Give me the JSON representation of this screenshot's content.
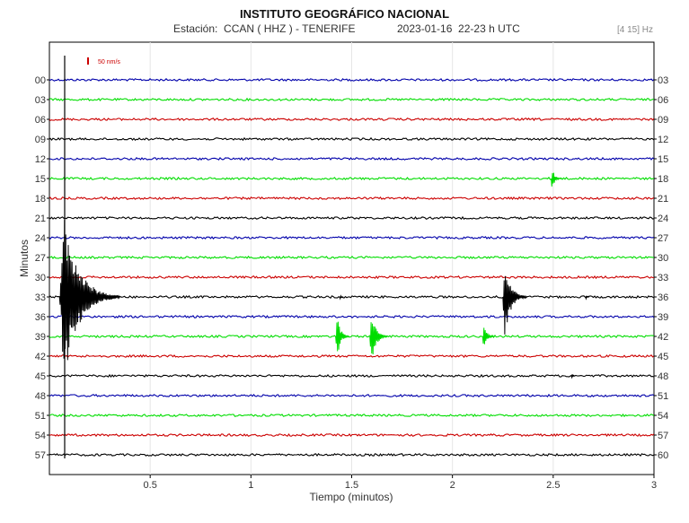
{
  "header": {
    "title": "INSTITUTO GEOGRÁFICO NACIONAL",
    "station": "Estación:  CCAN ( HHZ ) - TENERIFE",
    "date": "2023-01-16  22-23 h UTC",
    "band": "[4 15] Hz"
  },
  "chart_data": {
    "type": "line",
    "xlabel": "Tiempo (minutos)",
    "ylabel": "Minutos",
    "xlim": [
      0,
      3
    ],
    "x_ticks": [
      "0.5",
      "1",
      "1.5",
      "2",
      "2.5",
      "3"
    ],
    "scale_label": "50 nm/s",
    "grid": true,
    "rows": [
      {
        "left": "00",
        "right": "03",
        "color": "#0000aa"
      },
      {
        "left": "03",
        "right": "06",
        "color": "#00dd00"
      },
      {
        "left": "06",
        "right": "09",
        "color": "#cc0000"
      },
      {
        "left": "09",
        "right": "12",
        "color": "#000000"
      },
      {
        "left": "12",
        "right": "15",
        "color": "#0000aa"
      },
      {
        "left": "15",
        "right": "18",
        "color": "#00dd00"
      },
      {
        "left": "18",
        "right": "21",
        "color": "#cc0000"
      },
      {
        "left": "21",
        "right": "24",
        "color": "#000000"
      },
      {
        "left": "24",
        "right": "27",
        "color": "#0000aa"
      },
      {
        "left": "27",
        "right": "30",
        "color": "#00dd00"
      },
      {
        "left": "30",
        "right": "33",
        "color": "#cc0000"
      },
      {
        "left": "33",
        "right": "36",
        "color": "#000000"
      },
      {
        "left": "36",
        "right": "39",
        "color": "#0000aa"
      },
      {
        "left": "39",
        "right": "42",
        "color": "#00dd00"
      },
      {
        "left": "42",
        "right": "45",
        "color": "#cc0000"
      },
      {
        "left": "45",
        "right": "48",
        "color": "#000000"
      },
      {
        "left": "48",
        "right": "51",
        "color": "#0000aa"
      },
      {
        "left": "51",
        "right": "54",
        "color": "#00dd00"
      },
      {
        "left": "54",
        "right": "57",
        "color": "#cc0000"
      },
      {
        "left": "57",
        "right": "60",
        "color": "#000000"
      }
    ],
    "events": [
      {
        "row": 5,
        "t": 2.49,
        "amp": 14,
        "dur": 0.05,
        "color": "#00dd00"
      },
      {
        "row": 11,
        "t": 0.05,
        "amp": 95,
        "dur": 0.3,
        "color": "#000000"
      },
      {
        "row": 11,
        "t": 2.25,
        "amp": 48,
        "dur": 0.12,
        "color": "#000000"
      },
      {
        "row": 11,
        "t": 1.44,
        "amp": 4,
        "dur": 0.02,
        "color": "#000000"
      },
      {
        "row": 11,
        "t": 2.66,
        "amp": 3,
        "dur": 0.02,
        "color": "#000000"
      },
      {
        "row": 13,
        "t": 1.42,
        "amp": 28,
        "dur": 0.07,
        "color": "#00dd00"
      },
      {
        "row": 13,
        "t": 1.59,
        "amp": 36,
        "dur": 0.09,
        "color": "#00dd00"
      },
      {
        "row": 13,
        "t": 2.15,
        "amp": 16,
        "dur": 0.06,
        "color": "#00dd00"
      },
      {
        "row": 15,
        "t": 2.59,
        "amp": 4,
        "dur": 0.02,
        "color": "#000000"
      }
    ]
  }
}
